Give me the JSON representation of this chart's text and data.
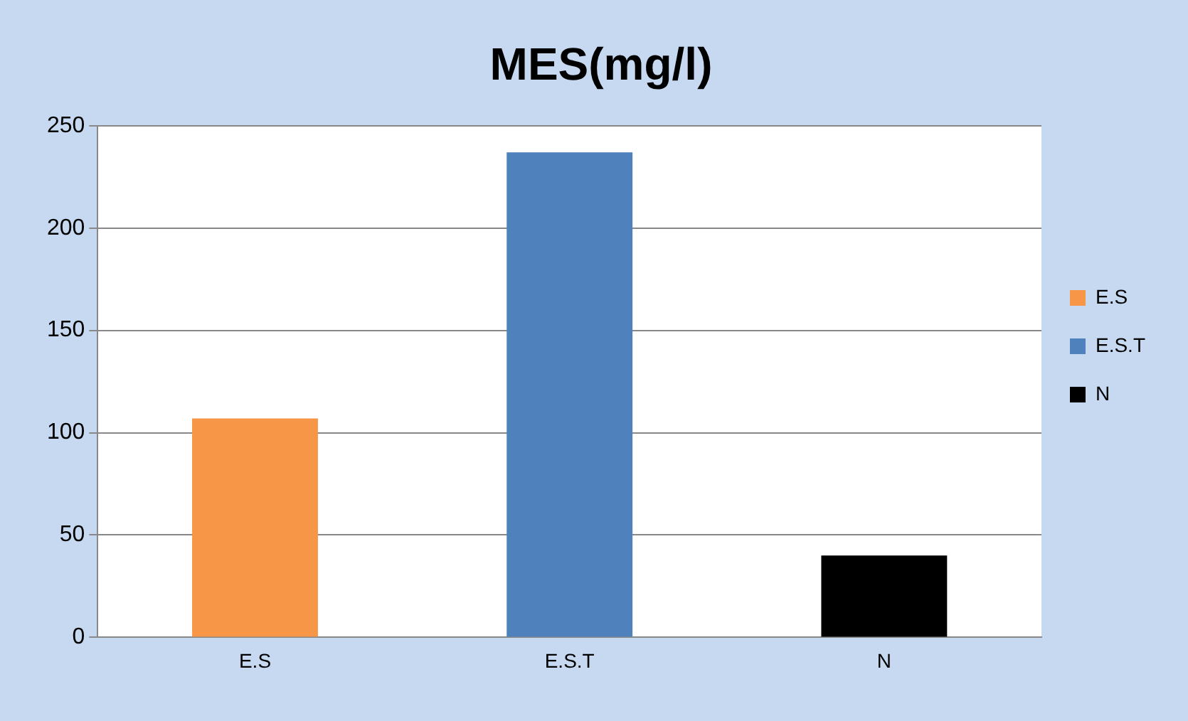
{
  "chart_data": {
    "type": "bar",
    "title": "MES(mg/l)",
    "categories": [
      "E.S",
      "E.S.T",
      "N"
    ],
    "series": [
      {
        "name": "E.S",
        "color": "#f79646",
        "values": [
          107,
          null,
          null
        ]
      },
      {
        "name": "E.S.T",
        "color": "#4f81bd",
        "values": [
          null,
          237,
          null
        ]
      },
      {
        "name": "N",
        "color": "#000000",
        "values": [
          null,
          null,
          40
        ]
      }
    ],
    "ylim": [
      0,
      250
    ],
    "yticks": [
      0,
      50,
      100,
      150,
      200,
      250
    ],
    "grid": "y",
    "legend": "right"
  }
}
